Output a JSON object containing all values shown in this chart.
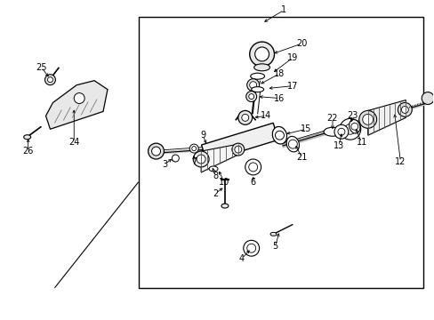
{
  "bg_color": "#ffffff",
  "lc": "#000000",
  "fig_width": 4.89,
  "fig_height": 3.6,
  "dpi": 100,
  "fs": 7.0
}
